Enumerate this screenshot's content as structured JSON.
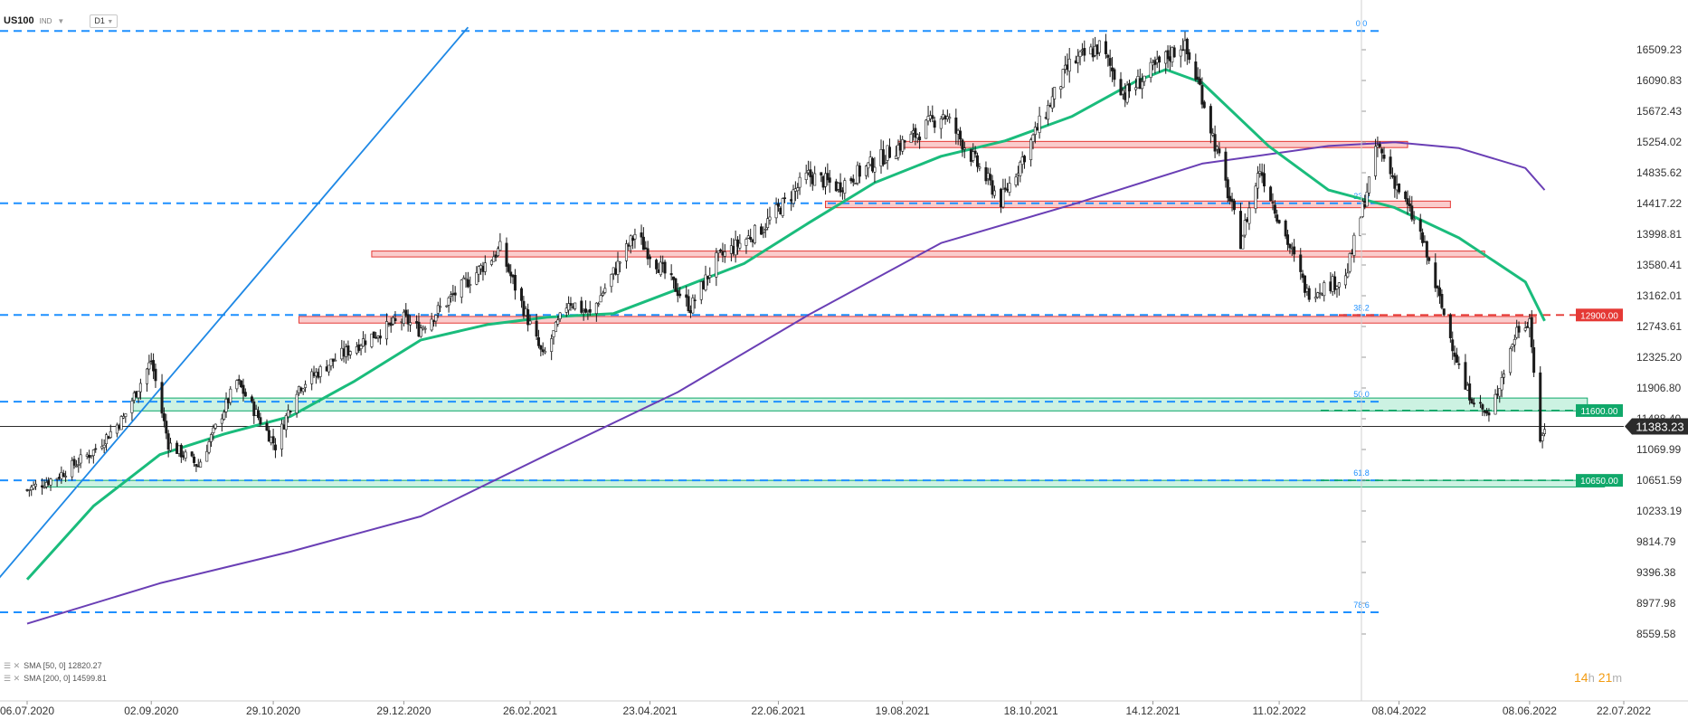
{
  "header": {
    "symbol": "US100",
    "market": "IND",
    "timeframe": "D1"
  },
  "countdown": {
    "hours": "14",
    "hours_unit": "h",
    "minutes": "21",
    "minutes_unit": "m"
  },
  "legend": [
    {
      "label": "SMA [50, 0] 12820.27",
      "color": "#1abc7c"
    },
    {
      "label": "SMA [200, 0] 14599.81",
      "color": "#6a3fb5"
    }
  ],
  "colors": {
    "up_candle": "#ffffff",
    "down_candle": "#1a1a1a",
    "fib": "#1e90ff",
    "resistance": "#e53935",
    "support": "#10a86a",
    "sma50": "#1abc7c",
    "sma200": "#6a3fb5",
    "trendline": "#1e88e5",
    "current": "#2b2b2b"
  },
  "chart_data": {
    "type": "candlestick",
    "symbol": "US100",
    "timeframe": "D1",
    "x_axis": {
      "ticks": [
        "06.07.2020",
        "02.09.2020",
        "29.10.2020",
        "29.12.2020",
        "26.02.2021",
        "23.04.2021",
        "22.06.2021",
        "19.08.2021",
        "18.10.2021",
        "14.12.2021",
        "11.02.2022",
        "08.04.2022",
        "08.06.2022",
        "22.07.2022"
      ]
    },
    "y_axis": {
      "ticks": [
        "16509.23",
        "16090.83",
        "15672.43",
        "15254.02",
        "14835.62",
        "14417.22",
        "13998.81",
        "13580.41",
        "13162.01",
        "12743.61",
        "12325.20",
        "11906.80",
        "11488.40",
        "11069.99",
        "10651.59",
        "10233.19",
        "9814.79",
        "9396.38",
        "8977.98",
        "8559.58"
      ],
      "range": [
        8559.58,
        16509.23
      ]
    },
    "current_price": {
      "value": 11383.23,
      "label": "11383.23"
    },
    "price_levels": [
      {
        "value": 12900.0,
        "label": "12900.00",
        "kind": "resistance"
      },
      {
        "value": 11600.0,
        "label": "11600.00",
        "kind": "support"
      },
      {
        "value": 10650.0,
        "label": "10650.00",
        "kind": "support"
      }
    ],
    "fibonacci": [
      {
        "ratio": "0.0",
        "value": 16765
      },
      {
        "ratio": "23.6",
        "value": 14420
      },
      {
        "ratio": "38.2",
        "value": 12900
      },
      {
        "ratio": "50.0",
        "value": 11720
      },
      {
        "ratio": "61.8",
        "value": 10650
      },
      {
        "ratio": "78.6",
        "value": 8855
      }
    ],
    "zones": [
      {
        "kind": "resistance",
        "from": "17.08.2021",
        "to": "12.04.2022",
        "low": 15178,
        "high": 15262
      },
      {
        "kind": "resistance",
        "from": "14.07.2021",
        "to": "02.05.2022",
        "low": 14360,
        "high": 14450
      },
      {
        "kind": "resistance",
        "from": "14.12.2020",
        "to": "18.05.2022",
        "low": 13690,
        "high": 13770
      },
      {
        "kind": "resistance",
        "from": "10.11.2020",
        "to": "11.06.2022",
        "low": 12790,
        "high": 12880
      },
      {
        "kind": "support",
        "from": "24.08.2020",
        "to": "05.07.2022",
        "low": 11595,
        "high": 11770
      },
      {
        "kind": "support",
        "from": "14.07.2020",
        "to": "13.07.2022",
        "low": 10560,
        "high": 10650
      }
    ],
    "trendline": {
      "from": {
        "date": "10.06.2020",
        "value": 8880
      },
      "to": {
        "date": "28.01.2021",
        "value": 16815
      }
    },
    "sma50": {
      "label": "SMA [50, 0] 12820.27",
      "points": [
        [
          "06.07.2020",
          9300
        ],
        [
          "06.08.2020",
          10300
        ],
        [
          "06.09.2020",
          11000
        ],
        [
          "06.10.2020",
          11280
        ],
        [
          "06.11.2020",
          11520
        ],
        [
          "06.12.2020",
          12000
        ],
        [
          "06.01.2021",
          12560
        ],
        [
          "06.02.2021",
          12770
        ],
        [
          "06.03.2021",
          12870
        ],
        [
          "06.04.2021",
          12920
        ],
        [
          "06.05.2021",
          13250
        ],
        [
          "06.06.2021",
          13600
        ],
        [
          "06.07.2021",
          14150
        ],
        [
          "06.08.2021",
          14700
        ],
        [
          "06.09.2021",
          15060
        ],
        [
          "06.10.2021",
          15270
        ],
        [
          "06.11.2021",
          15600
        ],
        [
          "06.12.2021",
          16080
        ],
        [
          "20.12.2021",
          16240
        ],
        [
          "06.01.2022",
          16060
        ],
        [
          "06.02.2022",
          15200
        ],
        [
          "06.03.2022",
          14600
        ],
        [
          "06.04.2022",
          14360
        ],
        [
          "06.05.2022",
          13950
        ],
        [
          "06.06.2022",
          13350
        ],
        [
          "15.06.2022",
          12820
        ]
      ]
    },
    "sma200": {
      "label": "SMA [200, 0] 14599.81",
      "points": [
        [
          "06.07.2020",
          8700
        ],
        [
          "06.09.2020",
          9250
        ],
        [
          "06.11.2020",
          9680
        ],
        [
          "06.01.2021",
          10160
        ],
        [
          "06.03.2021",
          11000
        ],
        [
          "06.05.2021",
          11850
        ],
        [
          "06.07.2021",
          12900
        ],
        [
          "06.09.2021",
          13880
        ],
        [
          "06.11.2021",
          14400
        ],
        [
          "06.01.2022",
          14960
        ],
        [
          "06.03.2022",
          15200
        ],
        [
          "06.04.2022",
          15250
        ],
        [
          "06.05.2022",
          15170
        ],
        [
          "06.06.2022",
          14900
        ],
        [
          "15.06.2022",
          14600
        ]
      ]
    },
    "price_path": [
      [
        "06.07.2020",
        10520
      ],
      [
        "20.07.2020",
        10700
      ],
      [
        "06.08.2020",
        11050
      ],
      [
        "20.08.2020",
        11500
      ],
      [
        "02.09.2020",
        12280
      ],
      [
        "10.09.2020",
        11150
      ],
      [
        "24.09.2020",
        10850
      ],
      [
        "12.10.2020",
        12000
      ],
      [
        "30.10.2020",
        11120
      ],
      [
        "09.11.2020",
        11900
      ],
      [
        "26.11.2020",
        12280
      ],
      [
        "10.12.2020",
        12550
      ],
      [
        "29.12.2020",
        12850
      ],
      [
        "05.01.2021",
        12700
      ],
      [
        "12.02.2021",
        13800
      ],
      [
        "04.03.2021",
        12320
      ],
      [
        "16.03.2021",
        13100
      ],
      [
        "26.03.2021",
        12900
      ],
      [
        "16.04.2021",
        14000
      ],
      [
        "12.05.2021",
        13000
      ],
      [
        "24.05.2021",
        13650
      ],
      [
        "15.06.2021",
        14100
      ],
      [
        "06.07.2021",
        14800
      ],
      [
        "20.07.2021",
        14650
      ],
      [
        "25.08.2021",
        15350
      ],
      [
        "07.09.2021",
        15650
      ],
      [
        "04.10.2021",
        14450
      ],
      [
        "05.11.2021",
        16300
      ],
      [
        "19.11.2021",
        16550
      ],
      [
        "01.12.2021",
        15900
      ],
      [
        "28.12.2021",
        16600
      ],
      [
        "05.01.2022",
        16000
      ],
      [
        "24.01.2022",
        13900
      ],
      [
        "02.02.2022",
        14900
      ],
      [
        "24.02.2022",
        13200
      ],
      [
        "14.03.2022",
        13400
      ],
      [
        "29.03.2022",
        15200
      ],
      [
        "18.04.2022",
        14000
      ],
      [
        "09.05.2022",
        11900
      ],
      [
        "20.05.2022",
        11500
      ],
      [
        "02.06.2022",
        12700
      ],
      [
        "08.06.2022",
        12850
      ],
      [
        "13.06.2022",
        11100
      ],
      [
        "15.06.2022",
        11383
      ]
    ]
  }
}
